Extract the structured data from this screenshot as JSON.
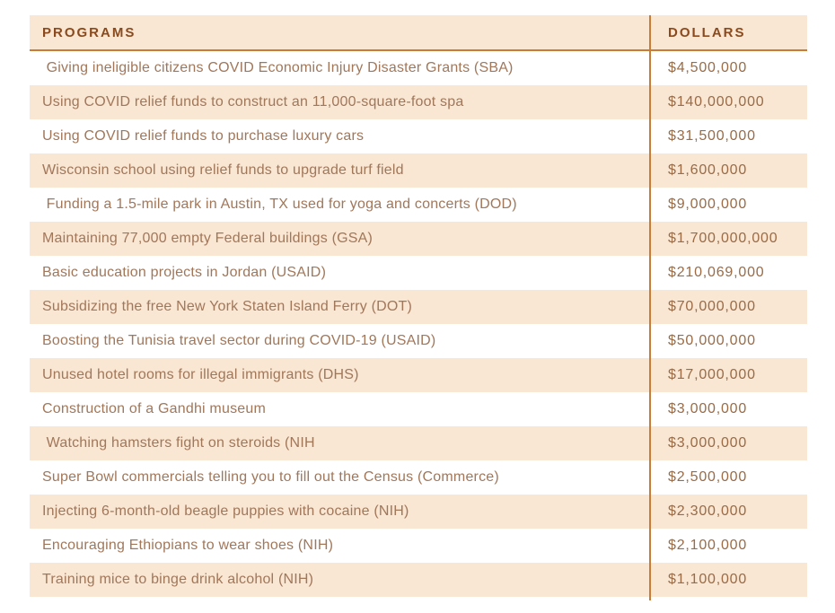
{
  "table": {
    "columns": [
      {
        "label": "PROGRAMS"
      },
      {
        "label": "DOLLARS"
      }
    ],
    "rows": [
      {
        "program": " Giving ineligible citizens COVID Economic Injury Disaster Grants (SBA)",
        "dollars": "$4,500,000"
      },
      {
        "program": "Using COVID relief funds to construct an 11,000-square-foot spa",
        "dollars": "$140,000,000"
      },
      {
        "program": "Using COVID relief funds to purchase luxury cars",
        "dollars": "$31,500,000"
      },
      {
        "program": "Wisconsin school using relief funds to upgrade turf field",
        "dollars": "$1,600,000"
      },
      {
        "program": " Funding a 1.5-mile park in Austin, TX used for yoga and concerts (DOD)",
        "dollars": "$9,000,000"
      },
      {
        "program": "Maintaining 77,000 empty Federal buildings (GSA)",
        "dollars": "$1,700,000,000"
      },
      {
        "program": "Basic education projects in Jordan (USAID)",
        "dollars": "$210,069,000"
      },
      {
        "program": "Subsidizing the free New York Staten Island Ferry (DOT)",
        "dollars": "$70,000,000"
      },
      {
        "program": "Boosting the Tunisia travel sector during COVID-19 (USAID)",
        "dollars": "$50,000,000"
      },
      {
        "program": "Unused hotel rooms for illegal immigrants (DHS)",
        "dollars": "$17,000,000"
      },
      {
        "program": "Construction of a Gandhi museum",
        "dollars": "$3,000,000"
      },
      {
        "program": " Watching hamsters fight on steroids (NIH",
        "dollars": "$3,000,000"
      },
      {
        "program": "Super Bowl commercials telling you to fill out the Census (Commerce)",
        "dollars": "$2,500,000"
      },
      {
        "program": "Injecting 6-month-old beagle puppies with cocaine (NIH)",
        "dollars": "$2,300,000"
      },
      {
        "program": "Encouraging Ethiopians to wear shoes (NIH)",
        "dollars": "$2,100,000"
      },
      {
        "program": "Training mice to binge drink alcohol (NIH)",
        "dollars": "$1,100,000"
      }
    ],
    "colors": {
      "row_alt_bg": "#f9e6d3",
      "header_bg": "#f9e6d3",
      "divider_orange": "#c97c35",
      "header_text": "#8a4a1d",
      "program_text": "#a1775a",
      "dollars_text": "#9a6b45"
    }
  },
  "chart_data": {
    "type": "table",
    "title": "",
    "columns": [
      "PROGRAMS",
      "DOLLARS"
    ],
    "categories": [
      "Giving ineligible citizens COVID Economic Injury Disaster Grants (SBA)",
      "Using COVID relief funds to construct an 11,000-square-foot spa",
      "Using COVID relief funds to purchase luxury cars",
      "Wisconsin school using relief funds to upgrade turf field",
      "Funding a 1.5-mile park in Austin, TX used for yoga and concerts (DOD)",
      "Maintaining 77,000 empty Federal buildings (GSA)",
      "Basic education projects in Jordan (USAID)",
      "Subsidizing the free New York Staten Island Ferry (DOT)",
      "Boosting the Tunisia travel sector during COVID-19 (USAID)",
      "Unused hotel rooms for illegal immigrants (DHS)",
      "Construction of a Gandhi museum",
      "Watching hamsters fight on steroids (NIH",
      "Super Bowl commercials telling you to fill out the Census (Commerce)",
      "Injecting 6-month-old beagle puppies with cocaine (NIH)",
      "Encouraging Ethiopians to wear shoes (NIH)",
      "Training mice to binge drink alcohol (NIH)"
    ],
    "values": [
      4500000,
      140000000,
      31500000,
      1600000,
      9000000,
      1700000000,
      210069000,
      70000000,
      50000000,
      17000000,
      3000000,
      3000000,
      2500000,
      2300000,
      2100000,
      1100000
    ],
    "value_unit": "USD"
  }
}
